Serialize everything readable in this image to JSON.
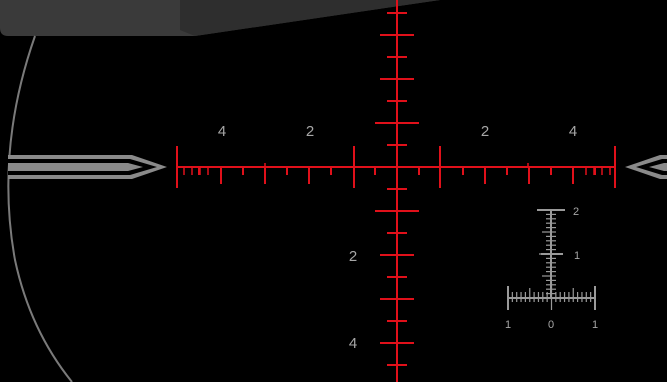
{
  "colors": {
    "reticle": "#e0101a",
    "scale": "#9a9a9a",
    "labels": "#a7a7a7",
    "field_edge": "#7a7a7a",
    "scope_housing": "#3a3a3a",
    "background": "#000000"
  },
  "icons": {
    "left_post": "post-left-icon",
    "right_post": "post-right-icon"
  },
  "horizontal_labels": {
    "left_outer": "4",
    "left_inner": "2",
    "right_inner": "2",
    "right_outer": "4"
  },
  "vertical_labels": {
    "lower_inner": "2",
    "lower_outer": "4"
  },
  "rangefinder_scale": {
    "top": "2",
    "middle": "1",
    "left": "1",
    "center": "0",
    "right": "1"
  }
}
